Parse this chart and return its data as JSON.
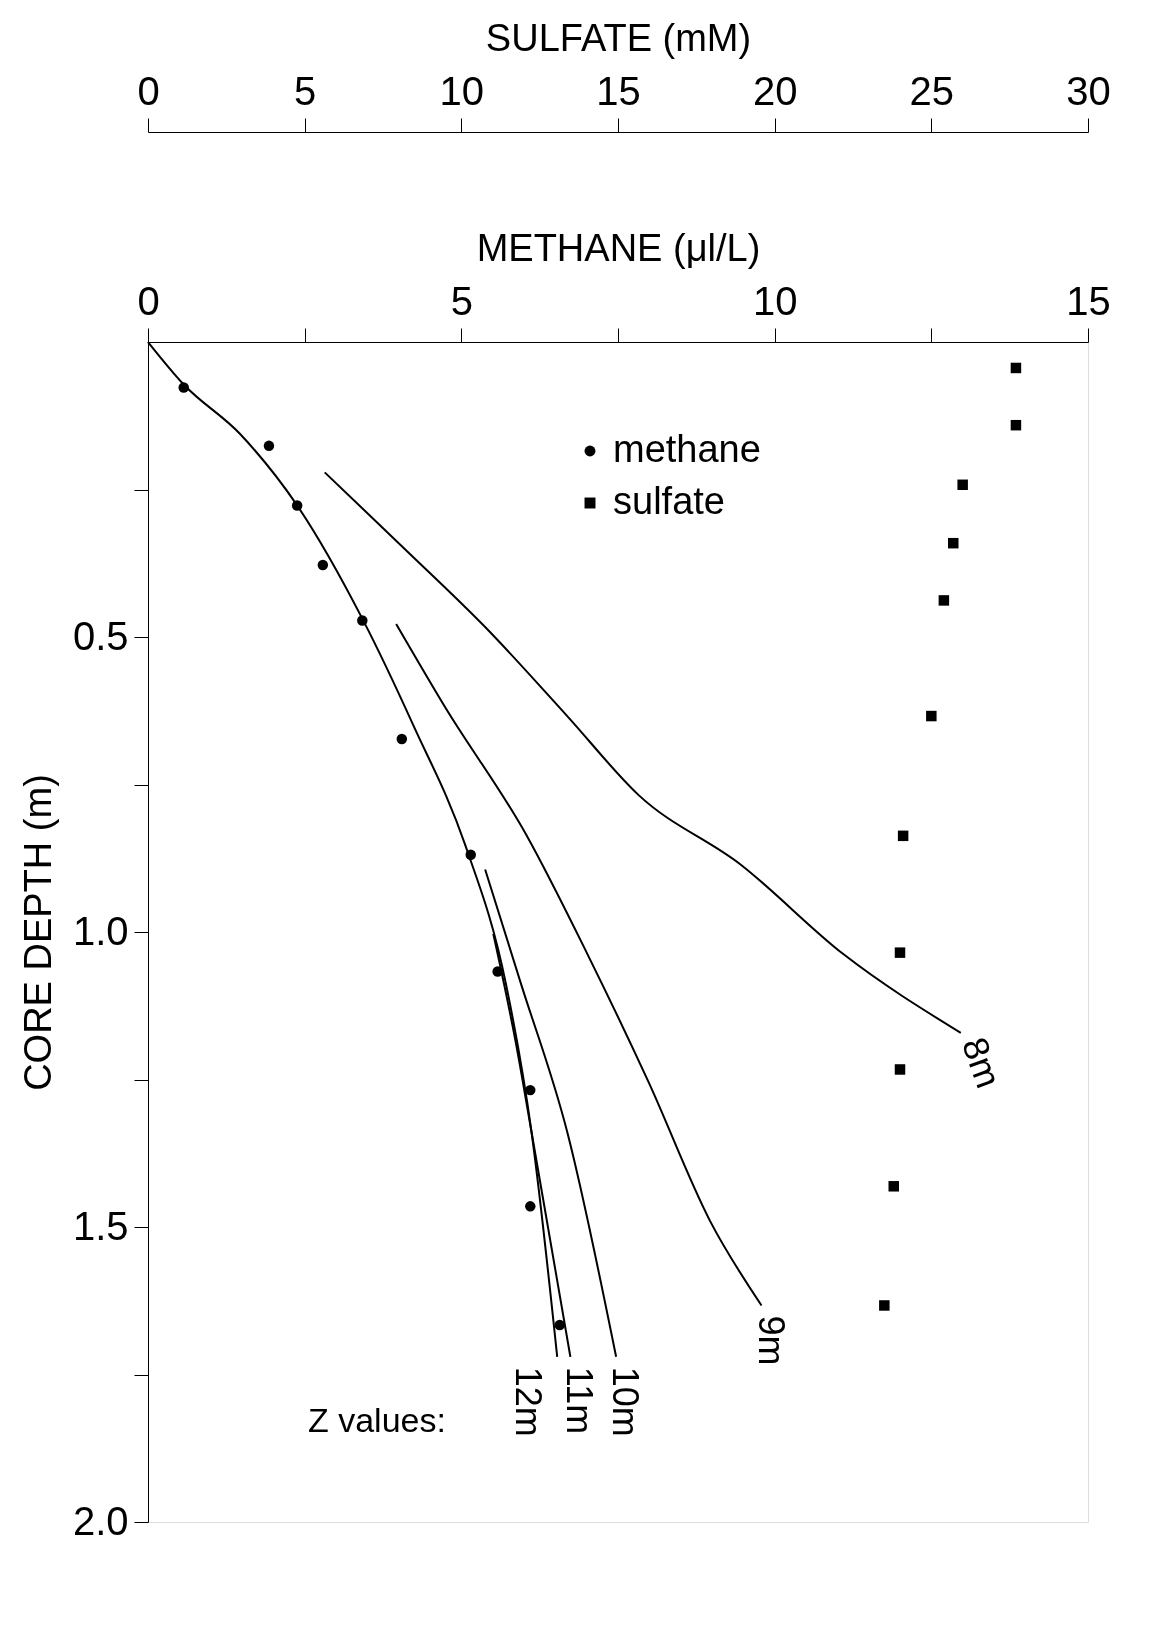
{
  "chart_data": {
    "type": "scatter",
    "xlabel": "METHANE (μl/L)",
    "x2label": "SULFATE (mM)",
    "ylabel": "CORE DEPTH (m)",
    "xlim": [
      0,
      15
    ],
    "xticks": [
      0,
      {
        "value": 2.5,
        "label": null
      },
      5,
      {
        "value": 7.5,
        "label": null
      },
      10,
      {
        "value": 12.5,
        "label": null
      },
      15
    ],
    "x2lim": [
      0,
      30
    ],
    "x2ticks": [
      0,
      5,
      10,
      15,
      20,
      25,
      30
    ],
    "ylim": [
      2.0,
      0
    ],
    "yticks": [
      {
        "value": 0.25,
        "label": null
      },
      {
        "value": 0.5,
        "label": "0.5"
      },
      {
        "value": 0.75,
        "label": null
      },
      {
        "value": 1.0,
        "label": "1.0"
      },
      {
        "value": 1.25,
        "label": null
      },
      {
        "value": 1.5,
        "label": "1.5"
      },
      {
        "value": 1.75,
        "label": null
      },
      {
        "value": 2.0,
        "label": "2.0"
      }
    ],
    "grid": false,
    "legend": "top",
    "annotations": [
      "Z values:"
    ],
    "series": [
      {
        "name": "methane",
        "type": "scatter",
        "marker": "circle",
        "color": "#000000",
        "x": [
          0.57,
          1.93,
          2.38,
          2.79,
          3.42,
          4.05,
          5.15,
          5.58,
          6.1,
          6.1,
          6.57
        ],
        "values": [
          0.077,
          0.176,
          0.277,
          0.378,
          0.472,
          0.673,
          0.869,
          1.067,
          1.268,
          1.465,
          1.666
        ]
      },
      {
        "name": "sulfate",
        "type": "scatter",
        "marker": "square",
        "axis": "x2",
        "color": "#000000",
        "x": [
          27.7,
          27.7,
          26.0,
          25.7,
          25.4,
          25.0,
          24.1,
          24.0,
          24.0,
          23.8,
          23.5
        ],
        "values": [
          0.044,
          0.141,
          0.242,
          0.341,
          0.438,
          0.634,
          0.837,
          1.035,
          1.233,
          1.431,
          1.633
        ]
      },
      {
        "name": "8m",
        "type": "line",
        "marker": "none",
        "color": "#000000",
        "x": [
          2.82,
          4.08,
          5.38,
          6.69,
          7.83,
          9.46,
          11.09,
          12.97
        ],
        "values": [
          0.221,
          0.349,
          0.483,
          0.634,
          0.768,
          0.886,
          1.037,
          1.171
        ]
      },
      {
        "name": "9m",
        "type": "line",
        "marker": "none",
        "color": "#000000",
        "x": [
          3.96,
          4.73,
          6.04,
          7.01,
          7.99,
          8.97,
          9.79
        ],
        "values": [
          0.478,
          0.617,
          0.836,
          1.037,
          1.255,
          1.49,
          1.633
        ]
      },
      {
        "name": "10m",
        "type": "line",
        "marker": "none",
        "color": "#000000",
        "x": [
          5.38,
          5.95,
          6.69,
          7.47
        ],
        "values": [
          0.894,
          1.087,
          1.339,
          1.72
        ]
      },
      {
        "name": "11m",
        "type": "line",
        "marker": "none",
        "color": "#000000",
        "x": [
          5.51,
          5.87,
          6.12,
          6.74
        ],
        "values": [
          1.003,
          1.188,
          1.339,
          1.72
        ]
      },
      {
        "name": "12m",
        "type": "line",
        "marker": "none",
        "color": "#000000",
        "x": [
          0,
          0.57,
          1.47,
          2.38,
          3.43,
          4.24,
          5.06,
          5.71,
          6.12,
          6.53
        ],
        "values": [
          0,
          0.072,
          0.156,
          0.277,
          0.471,
          0.651,
          0.852,
          1.087,
          1.339,
          1.72
        ]
      }
    ]
  }
}
